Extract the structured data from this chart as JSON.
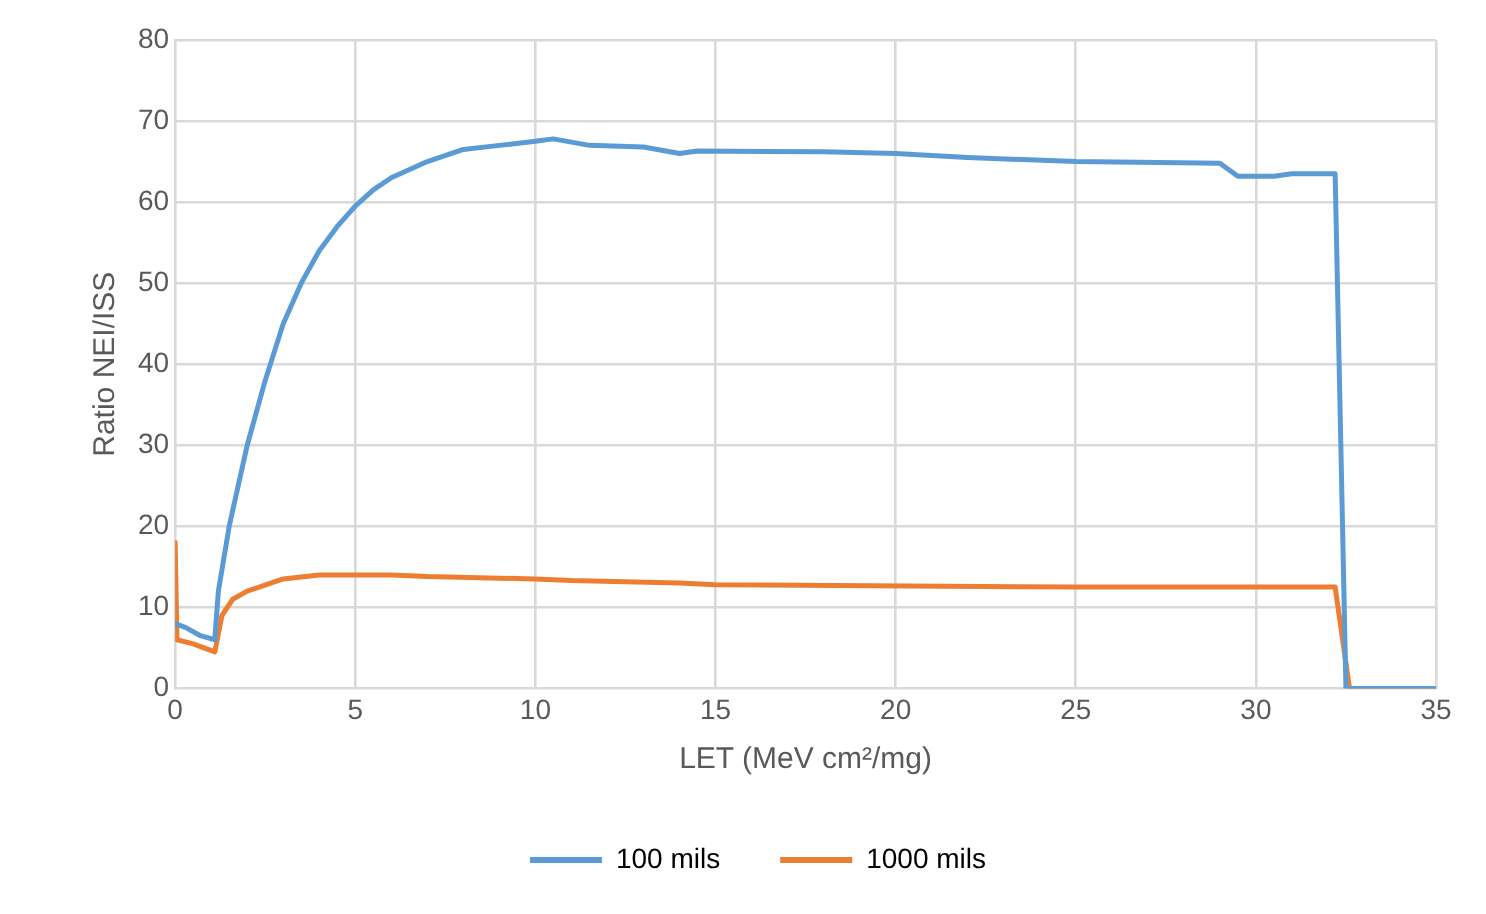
{
  "chart_data": {
    "type": "line",
    "xlabel": "LET (MeV cm²/mg)",
    "ylabel": "Ratio NEI/ISS",
    "xlim": [
      0,
      35
    ],
    "xticks": [
      0,
      5,
      10,
      15,
      20,
      25,
      30,
      35
    ],
    "ylim": [
      0,
      80
    ],
    "yticks": [
      0,
      10,
      20,
      30,
      40,
      50,
      60,
      70,
      80
    ],
    "grid": true,
    "legend": "bottom",
    "marker": "none",
    "line_style": "solid",
    "series": [
      {
        "name": "100 mils",
        "color": "#5b9bd5",
        "x": [
          0,
          0.3,
          0.7,
          1.1,
          1.2,
          1.5,
          2,
          2.5,
          3,
          3.5,
          4,
          4.5,
          5,
          5.5,
          6,
          7,
          8,
          9,
          10,
          10.5,
          11.5,
          13,
          14,
          14.5,
          18,
          20,
          22,
          25,
          29,
          29.5,
          30.5,
          31,
          32.2,
          32.5,
          35
        ],
        "values": [
          8,
          7.5,
          6.5,
          6,
          12,
          20,
          30,
          38,
          45,
          50,
          54,
          57,
          59.5,
          61.5,
          63,
          65,
          66.5,
          67,
          67.5,
          67.8,
          67,
          66.8,
          66,
          66.3,
          66.2,
          66,
          65.5,
          65,
          64.8,
          63.2,
          63.2,
          63.5,
          63.5,
          0,
          0
        ]
      },
      {
        "name": "1000 mils",
        "color": "#ed7d31",
        "x": [
          0,
          0.05,
          0.5,
          1.1,
          1.3,
          1.6,
          2,
          3,
          4,
          6,
          7,
          10,
          11,
          14,
          15,
          25,
          32.2,
          32.6,
          35
        ],
        "values": [
          18,
          6,
          5.5,
          4.5,
          9,
          11,
          12,
          13.5,
          14,
          14,
          13.8,
          13.5,
          13.3,
          13,
          12.8,
          12.5,
          12.5,
          0,
          0
        ]
      }
    ]
  }
}
